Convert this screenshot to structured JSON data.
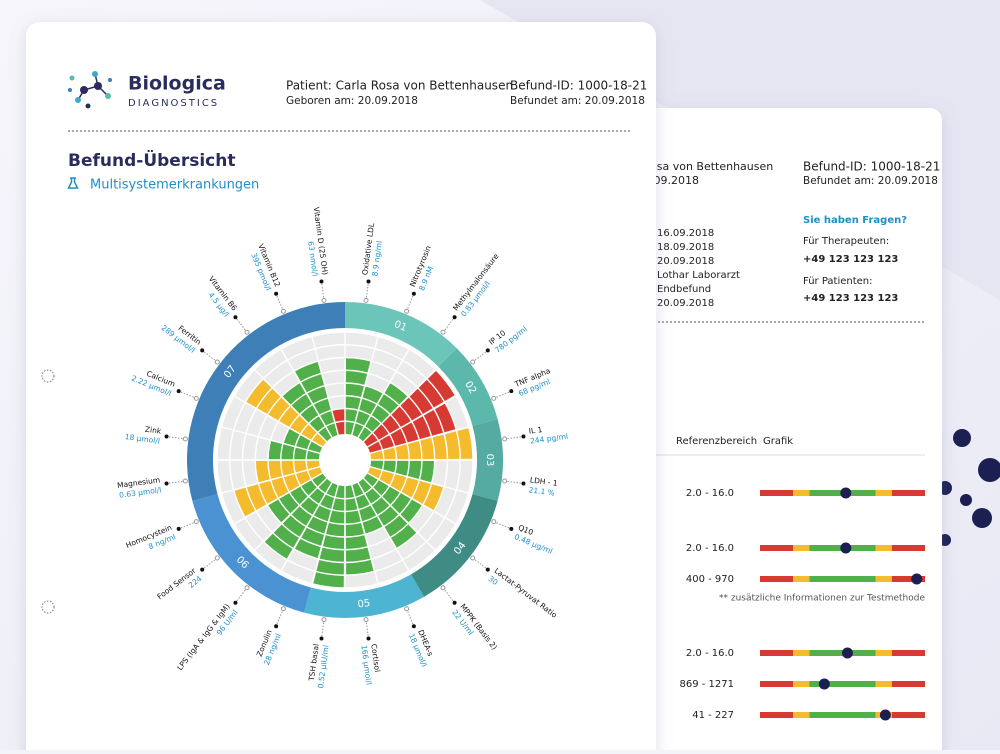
{
  "front": {
    "brand": {
      "name": "Biologica",
      "tagline": "DIAGNOSTICS"
    },
    "patient": {
      "name": "Patient: Carla Rosa von Bettenhausen",
      "born": "Geboren am: 20.09.2018",
      "id": "Befund-ID: 1000-18-21",
      "date": "Befundet am: 20.09.2018"
    },
    "title": "Befund-Übersicht",
    "subtitle": "Multisystemerkrankungen",
    "chart": {
      "rings": 8,
      "groups": [
        {
          "label": "01",
          "color": "#6cc5b9",
          "markers": [
            {
              "name": "Oxidative LDL",
              "value": "8.9 ng/ml",
              "level": 6,
              "color": "#52b04a"
            },
            {
              "name": "Nitrotyrosin",
              "value": "8.9 nM",
              "level": 4,
              "color": "#52b04a"
            },
            {
              "name": "Methylmalonsäure",
              "value": "0.83 µmol/l",
              "level": 5,
              "color": "#52b04a"
            }
          ]
        },
        {
          "label": "02",
          "color": "#5db8ac",
          "markers": [
            {
              "name": "IP 10",
              "value": "780 pg/ml",
              "level": 8,
              "color": "#d63a32"
            },
            {
              "name": "TNF alpha",
              "value": "68 pg/ml",
              "level": 7,
              "color": "#d63a32"
            }
          ]
        },
        {
          "label": "03",
          "color": "#55aba1",
          "markers": [
            {
              "name": "IL 1",
              "value": "244 pg/ml",
              "level": 8,
              "color": "#f4bb2c"
            },
            {
              "name": "LDH - 1",
              "value": "21.1 %",
              "level": 5,
              "color": "#52b04a"
            }
          ]
        },
        {
          "label": "04",
          "color": "#3f8c85",
          "markers": [
            {
              "name": "Q10",
              "value": "0.48 µg/ml",
              "level": 6,
              "color": "#f4bb2c"
            },
            {
              "name": "Lactat-Pyruvat Ratio",
              "value": "30",
              "level": 5,
              "color": "#52b04a"
            },
            {
              "name": "MPPK (Basis 2)",
              "value": "22 U/ml",
              "level": 6,
              "color": "#52b04a"
            }
          ]
        },
        {
          "label": "05",
          "color": "#4db4d2",
          "markers": [
            {
              "name": "DHEA-s",
              "value": "18 µmol/l",
              "level": 4,
              "color": "#52b04a"
            },
            {
              "name": "Cortisol",
              "value": "166 µmol/l",
              "level": 7,
              "color": "#52b04a"
            },
            {
              "name": "TSH basal",
              "value": "0.52 µIU/ml",
              "level": 8,
              "color": "#52b04a"
            }
          ]
        },
        {
          "label": "06",
          "color": "#4a92d2",
          "markers": [
            {
              "name": "Zonulin",
              "value": "28 ng/ml",
              "level": 6,
              "color": "#52b04a"
            },
            {
              "name": "LPS (IgA & IgG & IgM)",
              "value": "96 U/ml",
              "level": 7,
              "color": "#52b04a"
            },
            {
              "name": "Food Sensor",
              "value": "224",
              "level": 5,
              "color": "#52b04a"
            },
            {
              "name": "Homocystein",
              "value": "8 ng/ml",
              "level": 7,
              "color": "#f4bb2c"
            }
          ]
        },
        {
          "label": "07",
          "color": "#3e7fb8",
          "markers": [
            {
              "name": "Magnesium",
              "value": "0.63 µmol/l",
              "level": 5,
              "color": "#f4bb2c"
            },
            {
              "name": "Zink",
              "value": "18 µmol/l",
              "level": 4,
              "color": "#52b04a"
            },
            {
              "name": "Calcium",
              "value": "2.22 µmol/l",
              "level": 3,
              "color": "#52b04a"
            },
            {
              "name": "Ferritin",
              "value": "289 µmol/l",
              "level": 7,
              "color": "#f4bb2c"
            },
            {
              "name": "Vitamin B6",
              "value": "4.5 µg/l",
              "level": 5,
              "color": "#52b04a"
            },
            {
              "name": "Vitamin B12",
              "value": "395 pmol/l",
              "level": 6,
              "color": "#52b04a"
            },
            {
              "name": "Vitamin D (25 OH)",
              "value": "63 nmol/l",
              "level": 2,
              "color": "#d63a32"
            }
          ]
        }
      ]
    }
  },
  "back": {
    "patient": "osa von Bettenhausen",
    "patient_date": ".09.2018",
    "id": "Befund-ID: 1000-18-21",
    "date": "Befundet am: 20.09.2018",
    "details": [
      "16.09.2018",
      "18.09.2018",
      "20.09.2018",
      "Lothar Laborarzt",
      "Endbefund",
      "20.09.2018"
    ],
    "contact": {
      "question": "Sie haben Fragen?",
      "therapists": "Für Therapeuten:",
      "therapists_phone": "+49 123 123 123",
      "patients": "Für Patienten:",
      "patients_phone": "+49 123 123 123"
    },
    "table": {
      "headers": [
        "Referenzbereich",
        "Grafik"
      ],
      "rows": [
        {
          "range": "2.0 - 16.0",
          "marker": 52
        },
        {
          "range": "2.0 - 16.0",
          "marker": 52
        },
        {
          "range": "400 - 970",
          "marker": 95
        },
        {
          "range": "2.0 - 16.0",
          "marker": 53
        },
        {
          "range": "869 - 1271",
          "marker": 39
        },
        {
          "range": "41 - 227",
          "marker": 76
        }
      ],
      "note": "** zusätzliche Informationen zur Testmethode"
    }
  }
}
